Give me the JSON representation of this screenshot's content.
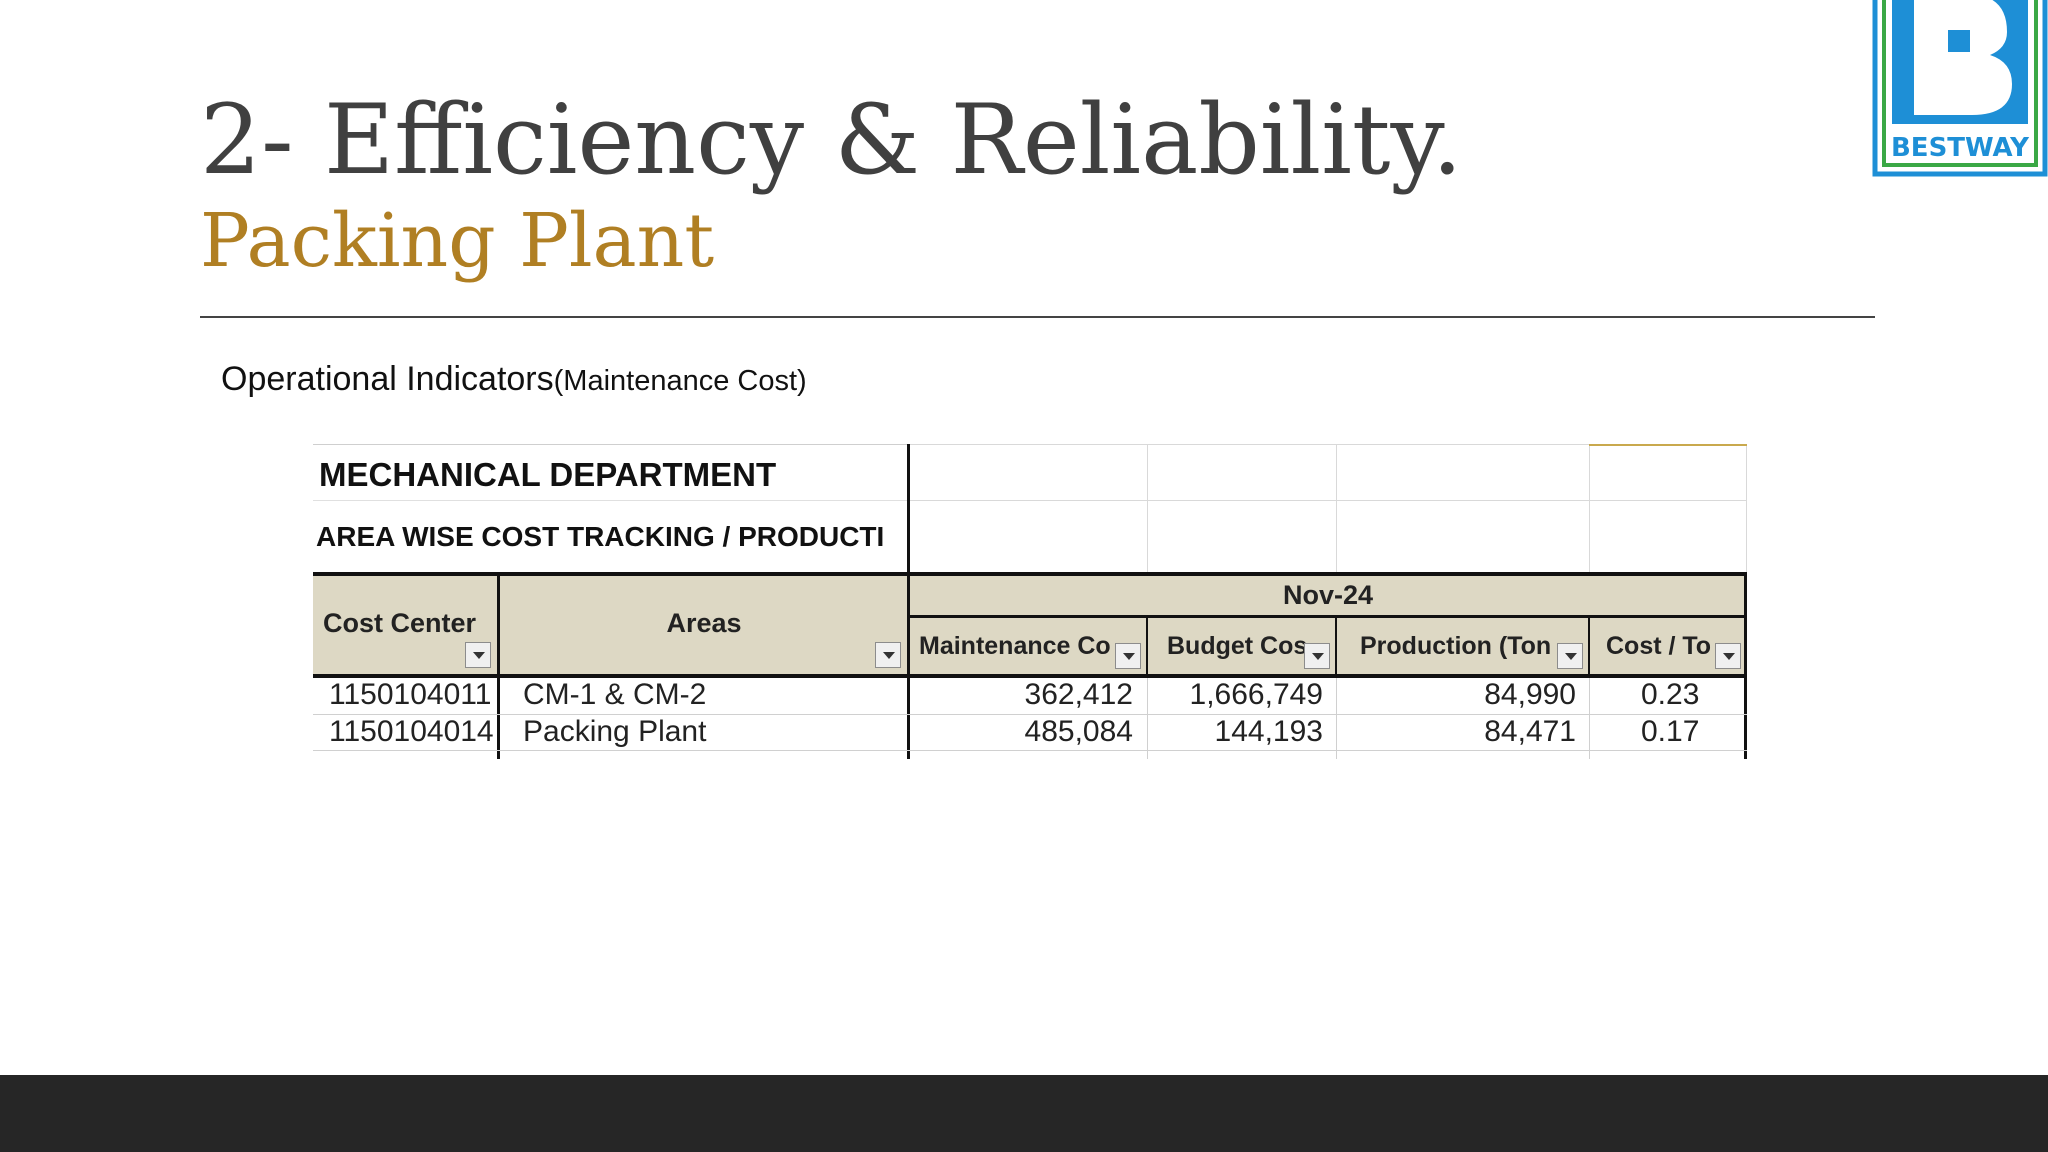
{
  "slide": {
    "title": "2- Efficiency & Reliability.",
    "subtitle": "Packing Plant",
    "caption_main": "Operational Indicators",
    "caption_small": "(Maintenance Cost)"
  },
  "logo": {
    "text": "BESTWAY",
    "letter": "B"
  },
  "sheet": {
    "department": "MECHANICAL DEPARTMENT",
    "heading": "AREA WISE COST TRACKING / PRODUCTI",
    "period": "Nov-24",
    "headers": {
      "cost_center": "Cost Center",
      "areas": "Areas",
      "maintenance": "Maintenance Co",
      "budget": "Budget Cos",
      "production": "Production (Ton",
      "cost_per_ton": "Cost / To"
    },
    "rows": [
      {
        "cost_center": "1150104011",
        "area": "CM-1 & CM-2",
        "maintenance": "362,412",
        "budget": "1,666,749",
        "production": "84,990",
        "cost_per_ton": "0.23"
      },
      {
        "cost_center": "1150104014",
        "area": "Packing Plant",
        "maintenance": "485,084",
        "budget": "144,193",
        "production": "84,471",
        "cost_per_ton": "0.17"
      }
    ]
  },
  "colors": {
    "accent": "#b07f23",
    "header_fill": "#ddd8c4",
    "footer": "#262626",
    "logo_blue": "#1e8fd6",
    "logo_green": "#3aa845"
  }
}
